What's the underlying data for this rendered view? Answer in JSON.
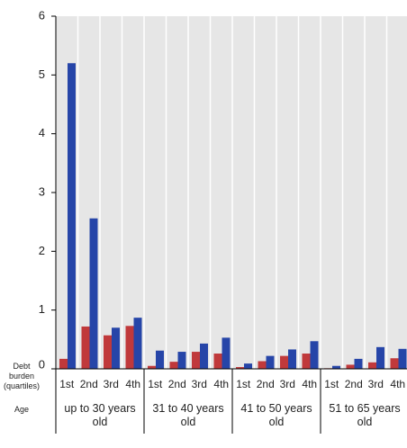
{
  "chart_data": {
    "type": "bar",
    "x_label_top": "Debt burden (quartiles)",
    "x_label_bottom": "Age",
    "groups": [
      {
        "label": "up to 30 years old",
        "categories": [
          "1st",
          "2nd",
          "3rd",
          "4th"
        ]
      },
      {
        "label": "31 to 40 years old",
        "categories": [
          "1st",
          "2nd",
          "3rd",
          "4th"
        ]
      },
      {
        "label": "41 to 50 years old",
        "categories": [
          "1st",
          "2nd",
          "3rd",
          "4th"
        ]
      },
      {
        "label": "51 to 65 years old",
        "categories": [
          "1st",
          "2nd",
          "3rd",
          "4th"
        ]
      }
    ],
    "series": [
      {
        "color": "#c0393b",
        "values": [
          0.17,
          0.72,
          0.57,
          0.73,
          0.05,
          0.12,
          0.29,
          0.26,
          0.03,
          0.13,
          0.22,
          0.26,
          0.01,
          0.07,
          0.11,
          0.18
        ]
      },
      {
        "color": "#2645a8",
        "values": [
          5.2,
          2.56,
          0.7,
          0.87,
          0.31,
          0.29,
          0.43,
          0.53,
          0.09,
          0.22,
          0.33,
          0.47,
          0.05,
          0.17,
          0.37,
          0.34
        ]
      }
    ],
    "ylim": [
      0,
      6
    ],
    "yticks": [
      0,
      1,
      2,
      3,
      4,
      5,
      6
    ],
    "background": "#e6e6e6",
    "grid": true
  }
}
